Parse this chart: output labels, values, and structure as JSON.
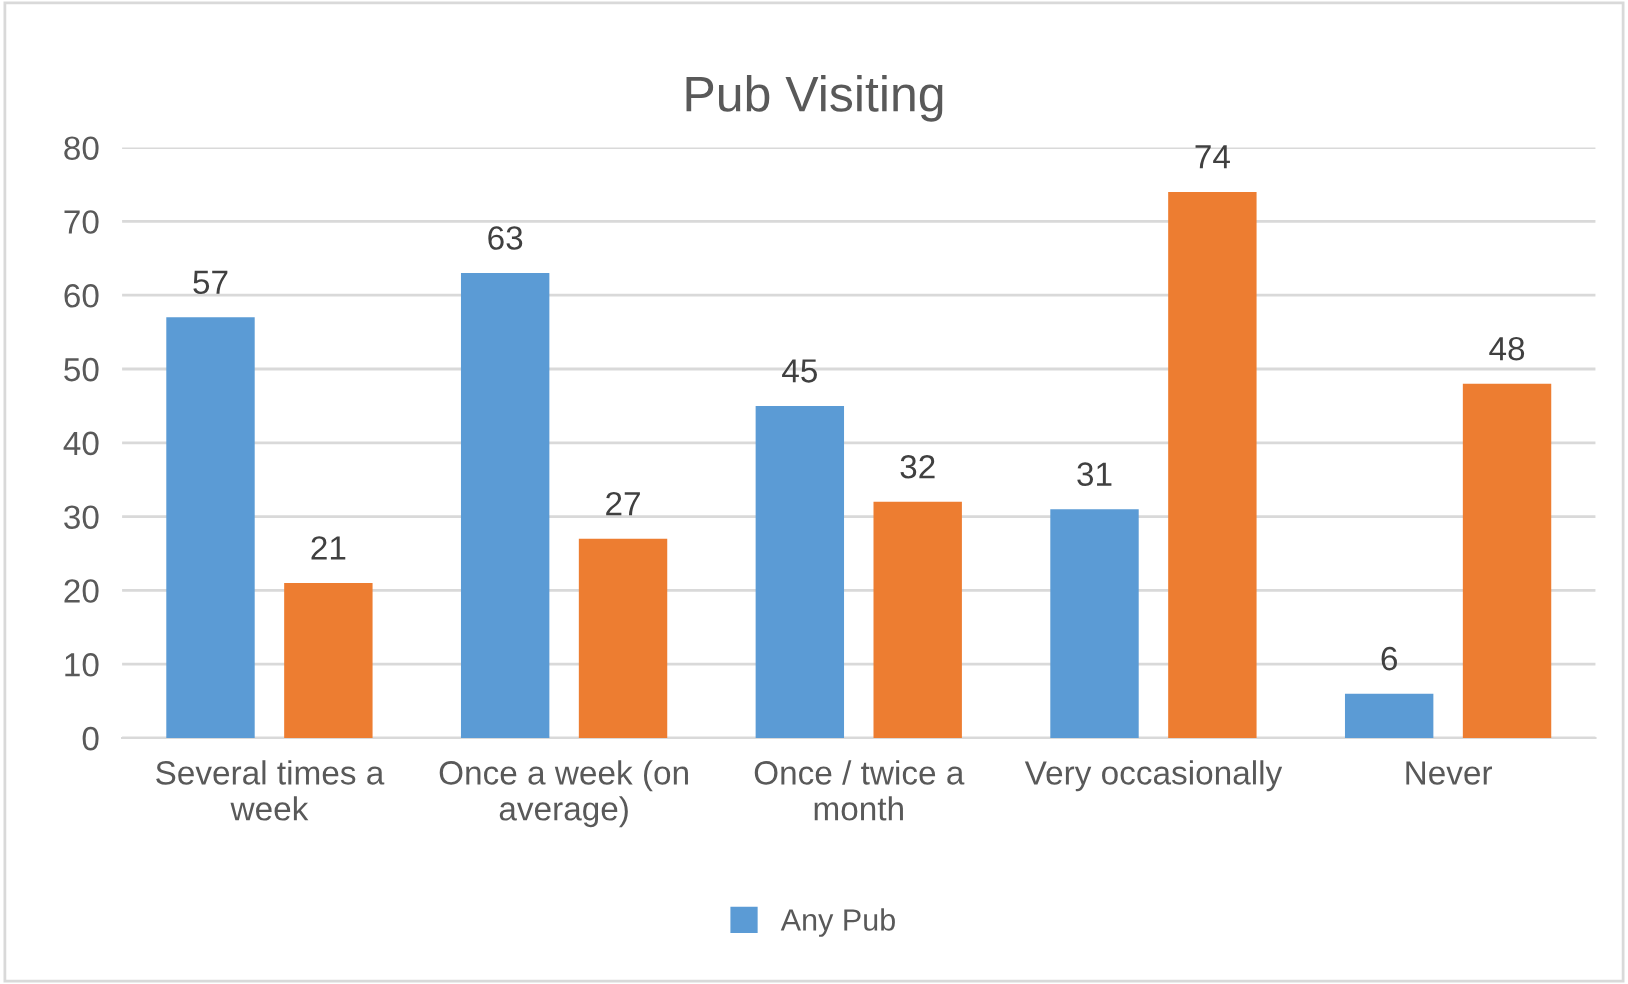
{
  "chart_data": {
    "type": "bar",
    "title": "Pub Visiting",
    "categories": [
      "Several times a week",
      "Once a week (on average)",
      "Once / twice a month",
      "Very occasionally",
      "Never"
    ],
    "series": [
      {
        "name": "Any Pub",
        "color": "#5b9bd5",
        "values": [
          57,
          63,
          45,
          31,
          6
        ]
      },
      {
        "color": "#ed7d31",
        "values": [
          21,
          27,
          32,
          74,
          48
        ]
      }
    ],
    "ylim": [
      0,
      80
    ],
    "yticks": [
      0,
      10,
      20,
      30,
      40,
      50,
      60,
      70,
      80
    ],
    "grid": "y",
    "legend": "bottom",
    "data_labels": true
  }
}
